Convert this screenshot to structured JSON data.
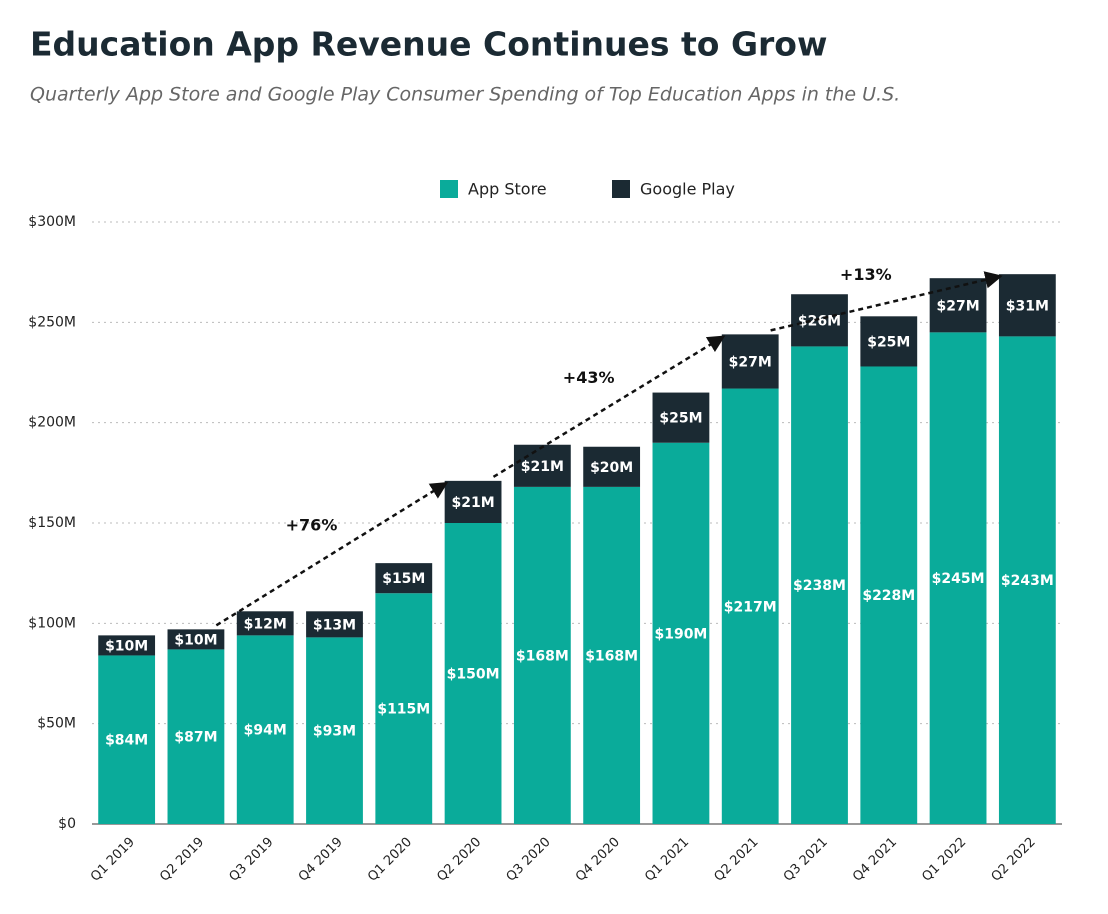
{
  "chart_data": {
    "type": "stacked_bar",
    "title": "Education App Revenue Continues to Grow",
    "subtitle": "Quarterly App Store and Google Play Consumer Spending of Top Education Apps in the U.S.",
    "categories": [
      "Q1 2019",
      "Q2 2019",
      "Q3 2019",
      "Q4 2019",
      "Q1 2020",
      "Q2 2020",
      "Q3 2020",
      "Q4 2020",
      "Q1 2021",
      "Q2 2021",
      "Q3 2021",
      "Q4 2021",
      "Q1 2022",
      "Q2 2022"
    ],
    "series": [
      {
        "name": "App Store",
        "color": "#0aab9a",
        "values": [
          84,
          87,
          94,
          93,
          115,
          150,
          168,
          168,
          190,
          217,
          238,
          228,
          245,
          243
        ],
        "value_labels": [
          "$84M",
          "$87M",
          "$94M",
          "$93M",
          "$115M",
          "$150M",
          "$168M",
          "$168M",
          "$190M",
          "$217M",
          "$238M",
          "$228M",
          "$245M",
          "$243M"
        ]
      },
      {
        "name": "Google Play",
        "color": "#1b2a33",
        "values": [
          10,
          10,
          12,
          13,
          15,
          21,
          21,
          20,
          25,
          27,
          26,
          25,
          27,
          31
        ],
        "value_labels": [
          "$10M",
          "$10M",
          "$12M",
          "$13M",
          "$15M",
          "$21M",
          "$21M",
          "$20M",
          "$25M",
          "$27M",
          "$26M",
          "$25M",
          "$27M",
          "$31M"
        ]
      }
    ],
    "ylim": [
      0,
      300
    ],
    "yticks": [
      {
        "value": 0,
        "label": "$0"
      },
      {
        "value": 50,
        "label": "$50M"
      },
      {
        "value": 100,
        "label": "$100M"
      },
      {
        "value": 150,
        "label": "$150M"
      },
      {
        "value": 200,
        "label": "$200M"
      },
      {
        "value": 250,
        "label": "$250M"
      },
      {
        "value": 300,
        "label": "$300M"
      }
    ],
    "grid": true,
    "legend": "top",
    "annotations": [
      "+76%",
      "+43%",
      "+13%"
    ]
  }
}
